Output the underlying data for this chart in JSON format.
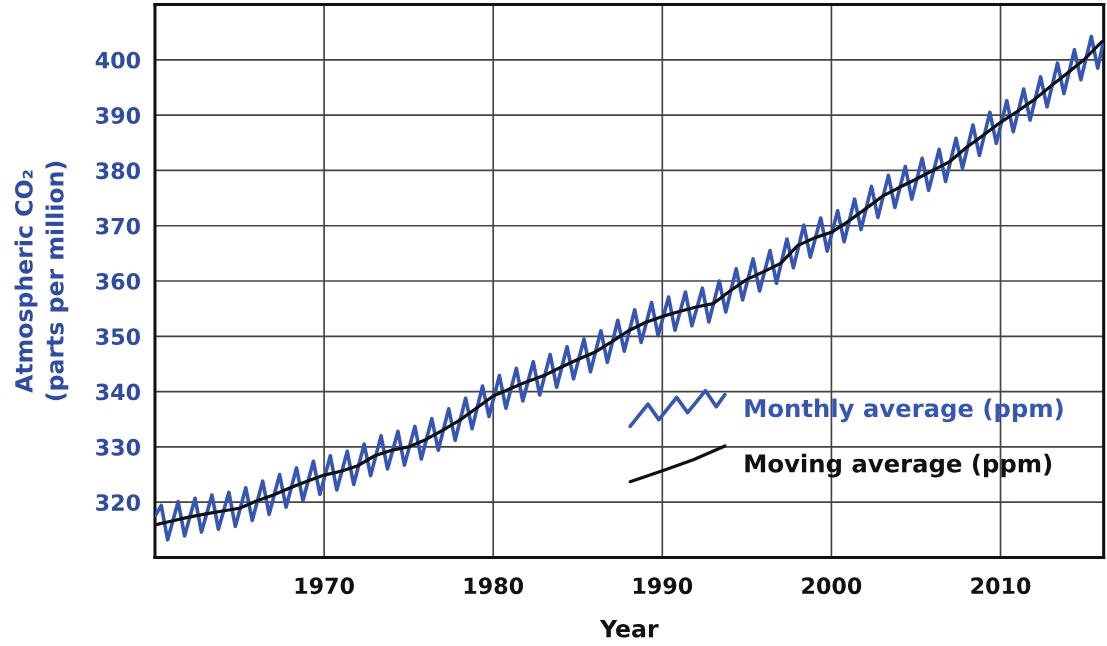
{
  "chart_data": {
    "type": "line",
    "xlabel": "Year",
    "ylabel": "Atmospheric CO₂\n(parts per million)",
    "xlim": [
      1960,
      2016.1
    ],
    "xticks": [
      1970,
      1980,
      1990,
      2000,
      2010
    ],
    "ylim": [
      310,
      410
    ],
    "yticks": [
      320,
      330,
      340,
      350,
      360,
      370,
      380,
      390,
      400
    ],
    "grid": true,
    "legend": "bottom right",
    "line_style": "solid",
    "series": [
      {
        "name": "Monthly average (ppm)",
        "color": "#3656b4",
        "x": [
          1960.0,
          1960.37,
          1960.75,
          1961.37,
          1961.75,
          1962.37,
          1962.75,
          1963.37,
          1963.75,
          1964.37,
          1964.75,
          1965.37,
          1965.75,
          1966.37,
          1966.75,
          1967.37,
          1967.75,
          1968.37,
          1968.75,
          1969.37,
          1969.75,
          1970.37,
          1970.75,
          1971.37,
          1971.75,
          1972.37,
          1972.75,
          1973.37,
          1973.75,
          1974.37,
          1974.75,
          1975.37,
          1975.75,
          1976.37,
          1976.75,
          1977.37,
          1977.75,
          1978.37,
          1978.75,
          1979.37,
          1979.75,
          1980.37,
          1980.75,
          1981.37,
          1981.75,
          1982.37,
          1982.75,
          1983.37,
          1983.75,
          1984.37,
          1984.75,
          1985.37,
          1985.75,
          1986.37,
          1986.75,
          1987.37,
          1987.75,
          1988.37,
          1988.75,
          1989.37,
          1989.75,
          1990.37,
          1990.75,
          1991.37,
          1991.75,
          1992.37,
          1992.75,
          1993.37,
          1993.75,
          1994.37,
          1994.75,
          1995.37,
          1995.75,
          1996.37,
          1996.75,
          1997.37,
          1997.75,
          1998.37,
          1998.75,
          1999.37,
          1999.75,
          2000.37,
          2000.75,
          2001.37,
          2001.75,
          2002.37,
          2002.75,
          2003.37,
          2003.75,
          2004.37,
          2004.75,
          2005.37,
          2005.75,
          2006.37,
          2006.75,
          2007.37,
          2007.75,
          2008.37,
          2008.75,
          2009.37,
          2009.75,
          2010.37,
          2010.75,
          2011.37,
          2011.75,
          2012.37,
          2012.75,
          2013.37,
          2013.75,
          2014.37,
          2014.75,
          2015.37,
          2015.75,
          2016.05
        ],
        "values": [
          317.5,
          319.4,
          313.2,
          320.1,
          313.9,
          320.7,
          314.6,
          321.3,
          315.1,
          321.8,
          315.6,
          322.6,
          316.7,
          323.8,
          317.8,
          325.0,
          319.1,
          326.2,
          320.3,
          327.4,
          321.4,
          328.4,
          322.2,
          329.2,
          323.2,
          330.5,
          324.8,
          332.0,
          326.0,
          332.8,
          326.7,
          333.7,
          327.8,
          335.1,
          329.4,
          336.9,
          331.2,
          338.8,
          333.3,
          341.0,
          335.5,
          342.9,
          337.0,
          344.2,
          338.3,
          345.4,
          339.4,
          346.7,
          340.8,
          348.1,
          342.3,
          349.5,
          343.6,
          351.0,
          345.3,
          352.9,
          347.3,
          354.8,
          348.9,
          356.1,
          350.1,
          357.1,
          351.1,
          358.0,
          351.9,
          358.7,
          352.6,
          360.0,
          354.4,
          362.2,
          356.6,
          364.0,
          358.2,
          365.5,
          359.6,
          367.6,
          362.4,
          370.1,
          364.3,
          371.4,
          365.4,
          372.7,
          367.1,
          374.8,
          369.3,
          377.1,
          371.5,
          379.1,
          373.3,
          380.7,
          374.8,
          382.2,
          376.4,
          383.8,
          378.0,
          385.8,
          380.4,
          388.2,
          382.7,
          390.5,
          384.9,
          392.6,
          387.0,
          394.7,
          389.1,
          396.9,
          391.5,
          399.4,
          393.9,
          401.8,
          396.4,
          404.2,
          398.5,
          402.8
        ]
      },
      {
        "name": "Moving average (ppm)",
        "color": "#111111",
        "x": [
          1960,
          1961,
          1962,
          1963,
          1964,
          1965,
          1966,
          1967,
          1968,
          1969,
          1970,
          1971,
          1972,
          1973,
          1974,
          1975,
          1976,
          1977,
          1978,
          1979,
          1980,
          1981,
          1982,
          1983,
          1984,
          1985,
          1986,
          1987,
          1988,
          1989,
          1990,
          1991,
          1992,
          1993,
          1994,
          1995,
          1996,
          1997,
          1998,
          1999,
          2000,
          2001,
          2002,
          2003,
          2004,
          2005,
          2006,
          2007,
          2008,
          2009,
          2010,
          2011,
          2012,
          2013,
          2014,
          2015,
          2016
        ],
        "values": [
          315.9,
          316.6,
          317.3,
          317.9,
          318.4,
          318.9,
          320.2,
          321.3,
          322.6,
          323.8,
          324.9,
          325.6,
          326.6,
          328.4,
          329.4,
          330.0,
          331.3,
          333.0,
          334.8,
          337.0,
          339.2,
          340.5,
          341.8,
          342.9,
          344.4,
          345.8,
          347.1,
          349.0,
          351.0,
          352.5,
          353.6,
          354.5,
          355.3,
          355.9,
          358.2,
          360.3,
          361.7,
          363.2,
          366.4,
          367.8,
          368.8,
          370.8,
          373.0,
          375.3,
          376.9,
          378.4,
          380.0,
          381.6,
          384.2,
          386.4,
          388.7,
          390.7,
          392.8,
          395.3,
          397.7,
          400.2,
          403.3
        ]
      }
    ]
  }
}
